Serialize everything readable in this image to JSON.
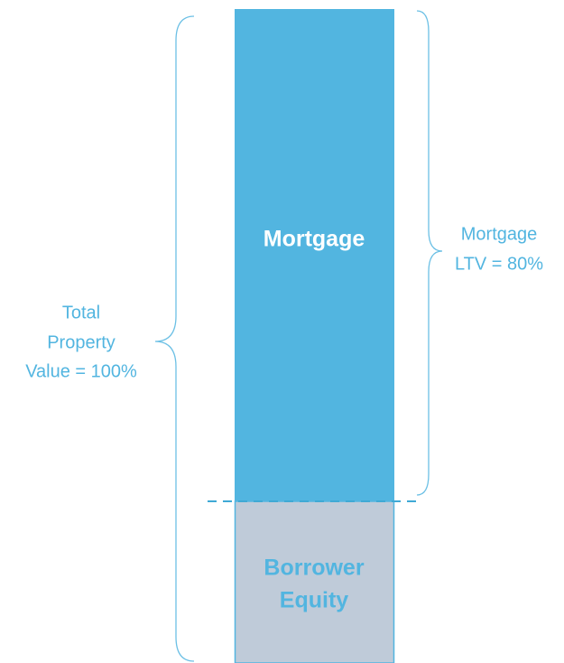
{
  "segments": [
    {
      "label": [
        "Mortgage"
      ]
    },
    {
      "label": [
        "Borrower",
        "Equity"
      ]
    }
  ],
  "annotations": {
    "total": [
      "Total",
      "Property",
      "Value = 100%"
    ],
    "ltv": [
      "Mortgage",
      "LTV = 80%"
    ]
  }
}
